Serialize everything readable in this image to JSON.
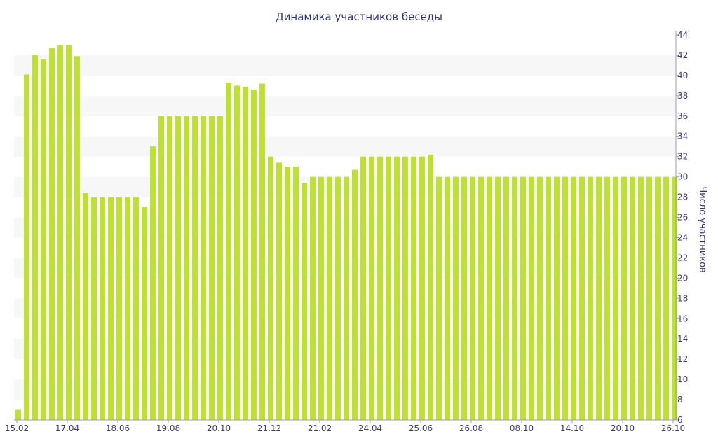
{
  "chart_data": {
    "type": "bar",
    "title": "Динамика участников беседы",
    "ylabel": "Число участников",
    "xlabel": "",
    "ylim": [
      6,
      44
    ],
    "y_ticks": [
      6,
      8,
      10,
      12,
      14,
      16,
      18,
      20,
      22,
      24,
      26,
      28,
      30,
      32,
      34,
      36,
      38,
      40,
      42,
      44
    ],
    "y_axis_position": "right",
    "grid": "alternating horizontal bands",
    "legend": "none",
    "x_tick_labels": [
      {
        "index": 0,
        "label": "15.02"
      },
      {
        "index": 6,
        "label": "17.04"
      },
      {
        "index": 12,
        "label": "18.06"
      },
      {
        "index": 18,
        "label": "19.08"
      },
      {
        "index": 24,
        "label": "20.10"
      },
      {
        "index": 30,
        "label": "21.12"
      },
      {
        "index": 36,
        "label": "21.02"
      },
      {
        "index": 42,
        "label": "24.04"
      },
      {
        "index": 48,
        "label": "25.06"
      },
      {
        "index": 54,
        "label": "26.08"
      },
      {
        "index": 60,
        "label": "08.10"
      },
      {
        "index": 66,
        "label": "14.10"
      },
      {
        "index": 72,
        "label": "20.10"
      },
      {
        "index": 78,
        "label": "26.10"
      }
    ],
    "values": [
      7,
      40.1,
      42,
      41.6,
      42.7,
      43,
      43,
      41.9,
      28.4,
      28,
      28,
      28,
      28,
      28,
      28,
      27,
      33,
      36,
      36,
      36,
      36,
      36,
      36,
      36,
      36,
      39.3,
      39,
      38.9,
      38.6,
      39.2,
      32,
      31.4,
      31,
      31,
      29.4,
      30,
      30,
      30,
      30,
      30,
      30.7,
      32,
      32,
      32,
      32,
      32,
      32,
      32,
      32,
      32.2,
      30,
      30,
      30,
      30,
      30,
      30,
      30,
      30,
      30,
      30,
      30,
      30,
      30,
      30,
      30,
      30,
      30,
      30,
      30,
      30,
      30,
      30,
      30,
      30,
      30,
      30,
      30,
      30,
      30
    ],
    "colors": {
      "bar": "#bde033",
      "band": "#f7f7f7",
      "text": "#3a3a78",
      "axis": "#9a9ab8"
    }
  }
}
